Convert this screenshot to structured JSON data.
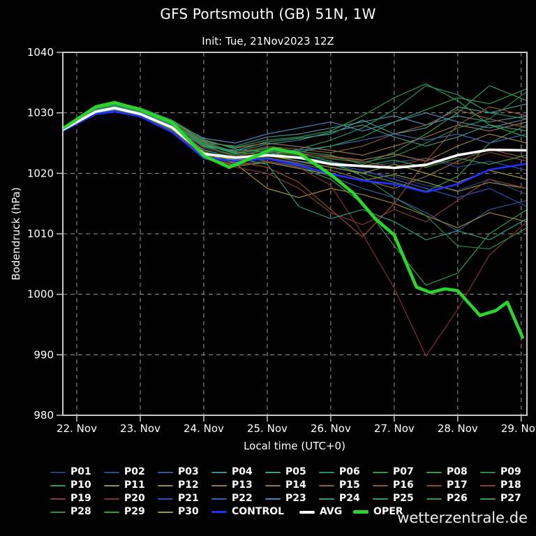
{
  "page": {
    "background": "#000000",
    "watermark": "wetterzentrale.de"
  },
  "colors": {
    "axis": "#c8c8c8",
    "grid": "#9a9a9a",
    "text": "#ffffff",
    "control": "#1f2fff",
    "avg": "#ffffff",
    "oper": "#2bd52b"
  },
  "chart_data": {
    "type": "line",
    "title": "GFS Portsmouth (GB) 51N, 1W",
    "subtitle": "Init: Tue, 21Nov2023 12Z",
    "xlabel": "Local time (UTC+0)",
    "ylabel": "Bodendruck (hPa)",
    "x_unit": "days since 22 Nov 00:00 local",
    "xlim": [
      -0.22,
      7.09
    ],
    "ylim": [
      980,
      1040
    ],
    "grid": "dashed",
    "legend_position": "bottom",
    "x_ticks": [
      {
        "d": 0,
        "label": "22. Nov"
      },
      {
        "d": 1,
        "label": "23. Nov"
      },
      {
        "d": 2,
        "label": "24. Nov"
      },
      {
        "d": 3,
        "label": "25. Nov"
      },
      {
        "d": 4,
        "label": "26. Nov"
      },
      {
        "d": 5,
        "label": "27. Nov"
      },
      {
        "d": 6,
        "label": "28. Nov"
      },
      {
        "d": 7,
        "label": "29. Nov"
      }
    ],
    "y_ticks": [
      980,
      990,
      1000,
      1010,
      1020,
      1030,
      1040
    ],
    "x": [
      -0.22,
      0.3,
      0.6,
      1.0,
      1.5,
      2.0,
      2.5,
      3.0,
      3.5,
      4.0,
      4.5,
      5.0,
      5.5,
      6.0,
      6.5,
      7.09
    ],
    "series": [
      {
        "name": "P01",
        "color": "#26417f",
        "lw": 1.2,
        "y": [
          1027.2,
          1030.0,
          1030.6,
          1029.6,
          1027.2,
          1023.0,
          1021.8,
          1022.5,
          1021.8,
          1021.0,
          1020.2,
          1019.5,
          1018.0,
          1017.2,
          1019.0,
          1016.5
        ]
      },
      {
        "name": "P02",
        "color": "#2a4a9a",
        "lw": 1.2,
        "y": [
          1027.0,
          1029.8,
          1030.4,
          1029.8,
          1027.6,
          1023.6,
          1022.2,
          1023.2,
          1022.6,
          1022.0,
          1021.0,
          1021.8,
          1022.5,
          1021.0,
          1022.0,
          1020.5
        ]
      },
      {
        "name": "P03",
        "color": "#35569a",
        "lw": 1.2,
        "y": [
          1027.4,
          1030.2,
          1030.8,
          1029.4,
          1026.8,
          1022.4,
          1021.4,
          1022.0,
          1021.2,
          1019.5,
          1017.5,
          1016.0,
          1013.5,
          1010.5,
          1014.0,
          1015.5
        ]
      },
      {
        "name": "P04",
        "color": "#4a8a9a",
        "lw": 1.2,
        "y": [
          1027.6,
          1030.4,
          1031.0,
          1030.0,
          1028.2,
          1025.0,
          1024.5,
          1026.0,
          1026.5,
          1027.5,
          1028.5,
          1029.5,
          1028.0,
          1029.5,
          1028.5,
          1029.5
        ]
      },
      {
        "name": "P05",
        "color": "#4a9a94",
        "lw": 1.2,
        "y": [
          1027.3,
          1030.1,
          1030.7,
          1029.7,
          1027.4,
          1024.4,
          1023.8,
          1025.2,
          1025.8,
          1026.5,
          1028.8,
          1026.5,
          1027.5,
          1031.0,
          1030.0,
          1031.5
        ]
      },
      {
        "name": "P06",
        "color": "#2f8f6a",
        "lw": 1.2,
        "y": [
          1027.5,
          1030.6,
          1031.4,
          1030.6,
          1028.6,
          1025.2,
          1023.5,
          1023.0,
          1024.0,
          1025.5,
          1027.5,
          1030.5,
          1034.5,
          1033.0,
          1030.0,
          1029.0
        ]
      },
      {
        "name": "P07",
        "color": "#2f9a4f",
        "lw": 1.2,
        "y": [
          1027.2,
          1030.4,
          1031.0,
          1030.2,
          1028.0,
          1024.6,
          1022.8,
          1022.0,
          1021.0,
          1019.0,
          1015.0,
          1008.0,
          1001.5,
          1003.5,
          1010.0,
          1014.0
        ]
      },
      {
        "name": "P08",
        "color": "#3a9a55",
        "lw": 1.2,
        "y": [
          1027.6,
          1031.0,
          1031.8,
          1030.8,
          1028.8,
          1025.6,
          1024.0,
          1023.5,
          1022.5,
          1021.5,
          1020.0,
          1018.5,
          1017.0,
          1019.5,
          1025.0,
          1028.0
        ]
      },
      {
        "name": "P09",
        "color": "#2f8a46",
        "lw": 1.2,
        "y": [
          1027.3,
          1030.2,
          1030.9,
          1029.9,
          1027.7,
          1023.8,
          1022.6,
          1023.4,
          1023.0,
          1022.4,
          1021.8,
          1022.8,
          1025.0,
          1027.5,
          1029.0,
          1033.5
        ]
      },
      {
        "name": "P10",
        "color": "#339a5c",
        "lw": 1.2,
        "y": [
          1027.4,
          1030.5,
          1031.2,
          1030.4,
          1028.2,
          1024.8,
          1023.2,
          1024.2,
          1023.6,
          1023.0,
          1021.5,
          1023.5,
          1026.5,
          1030.0,
          1034.5,
          1032.0
        ]
      },
      {
        "name": "P11",
        "color": "#8a9a3a",
        "lw": 1.2,
        "y": [
          1027.1,
          1029.9,
          1030.5,
          1029.5,
          1027.0,
          1022.8,
          1021.2,
          1021.8,
          1020.8,
          1019.8,
          1018.8,
          1019.8,
          1018.5,
          1017.0,
          1018.5,
          1017.5
        ]
      },
      {
        "name": "P12",
        "color": "#9a8a33",
        "lw": 1.2,
        "y": [
          1027.5,
          1030.3,
          1031.1,
          1030.1,
          1027.8,
          1023.4,
          1021.6,
          1017.5,
          1016.0,
          1017.5,
          1016.5,
          1015.0,
          1013.0,
          1011.0,
          1013.5,
          1012.0
        ]
      },
      {
        "name": "P13",
        "color": "#9a7a42",
        "lw": 1.2,
        "y": [
          1027.2,
          1030.0,
          1030.7,
          1029.8,
          1027.5,
          1023.2,
          1022.4,
          1023.6,
          1023.2,
          1022.8,
          1022.2,
          1023.2,
          1022.0,
          1024.5,
          1026.5,
          1025.0
        ]
      },
      {
        "name": "P14",
        "color": "#96764a",
        "lw": 1.2,
        "y": [
          1027.6,
          1030.6,
          1031.3,
          1030.3,
          1028.4,
          1025.4,
          1024.2,
          1025.0,
          1024.4,
          1023.8,
          1023.0,
          1024.5,
          1026.0,
          1028.0,
          1027.0,
          1028.5
        ]
      },
      {
        "name": "P15",
        "color": "#8a683f",
        "lw": 1.2,
        "y": [
          1027.3,
          1030.1,
          1030.8,
          1029.6,
          1027.2,
          1023.0,
          1021.8,
          1022.6,
          1021.6,
          1020.5,
          1019.0,
          1017.5,
          1019.5,
          1022.0,
          1024.0,
          1022.5
        ]
      },
      {
        "name": "P16",
        "color": "#8a5a3a",
        "lw": 1.2,
        "y": [
          1027.5,
          1030.7,
          1031.5,
          1030.5,
          1028.6,
          1025.0,
          1023.4,
          1024.4,
          1024.0,
          1023.4,
          1024.5,
          1026.5,
          1028.0,
          1030.5,
          1029.0,
          1027.5
        ]
      },
      {
        "name": "P17",
        "color": "#964a33",
        "lw": 1.2,
        "y": [
          1027.2,
          1030.2,
          1030.9,
          1030.0,
          1027.9,
          1023.6,
          1022.0,
          1021.0,
          1018.5,
          1014.0,
          1009.5,
          1015.0,
          1022.0,
          1028.0,
          1031.0,
          1029.5
        ]
      },
      {
        "name": "P18",
        "color": "#8a3f2f",
        "lw": 1.2,
        "y": [
          1027.4,
          1030.4,
          1031.1,
          1030.2,
          1028.1,
          1024.2,
          1022.8,
          1023.8,
          1023.4,
          1022.6,
          1022.0,
          1021.0,
          1022.5,
          1021.5,
          1023.5,
          1022.0
        ]
      },
      {
        "name": "P19",
        "color": "#8a3a3a",
        "lw": 1.2,
        "y": [
          1027.1,
          1029.7,
          1030.3,
          1029.3,
          1026.9,
          1022.6,
          1021.0,
          1020.0,
          1017.5,
          1013.5,
          1011.5,
          1014.0,
          1012.0,
          1015.5,
          1019.0,
          1017.5
        ]
      },
      {
        "name": "P20",
        "color": "#852f33",
        "lw": 1.2,
        "y": [
          1027.3,
          1030.0,
          1030.6,
          1029.5,
          1027.1,
          1022.9,
          1021.5,
          1022.0,
          1021.0,
          1018.0,
          1010.0,
          1001.0,
          989.8,
          997.5,
          1006.5,
          1012.0
        ]
      },
      {
        "name": "P21",
        "color": "#2f4fba",
        "lw": 1.2,
        "y": [
          1027.5,
          1030.5,
          1031.0,
          1030.0,
          1027.8,
          1023.4,
          1022.6,
          1023.0,
          1022.0,
          1021.5,
          1020.5,
          1019.0,
          1017.5,
          1016.0,
          1017.5,
          1014.5
        ]
      },
      {
        "name": "P22",
        "color": "#3a66b0",
        "lw": 1.2,
        "y": [
          1027.2,
          1029.9,
          1030.5,
          1029.7,
          1027.3,
          1023.1,
          1022.3,
          1023.5,
          1023.8,
          1024.5,
          1025.5,
          1026.5,
          1025.5,
          1026.5,
          1025.0,
          1026.5
        ]
      },
      {
        "name": "P23",
        "color": "#4f86bf",
        "lw": 1.2,
        "y": [
          1027.6,
          1030.8,
          1031.2,
          1030.4,
          1028.5,
          1025.8,
          1025.0,
          1026.5,
          1027.5,
          1028.5,
          1027.0,
          1028.5,
          1030.0,
          1028.5,
          1027.5,
          1029.0
        ]
      },
      {
        "name": "P24",
        "color": "#3a968a",
        "lw": 1.2,
        "y": [
          1027.4,
          1030.3,
          1031.0,
          1030.1,
          1028.0,
          1024.6,
          1023.6,
          1024.8,
          1025.5,
          1026.8,
          1028.0,
          1026.0,
          1024.5,
          1026.0,
          1028.0,
          1027.0
        ]
      },
      {
        "name": "P25",
        "color": "#2f9a82",
        "lw": 1.2,
        "y": [
          1027.3,
          1030.2,
          1030.8,
          1029.9,
          1027.6,
          1023.9,
          1022.5,
          1021.5,
          1014.5,
          1012.5,
          1014.0,
          1012.0,
          1009.0,
          1010.5,
          1009.0,
          1012.5
        ]
      },
      {
        "name": "P26",
        "color": "#309a52",
        "lw": 1.2,
        "y": [
          1027.5,
          1030.6,
          1031.3,
          1030.5,
          1028.3,
          1024.9,
          1023.3,
          1024.0,
          1023.5,
          1024.5,
          1026.0,
          1028.5,
          1030.5,
          1032.5,
          1031.5,
          1034.0
        ]
      },
      {
        "name": "P27",
        "color": "#38a04a",
        "lw": 1.2,
        "y": [
          1027.2,
          1030.0,
          1030.6,
          1029.6,
          1027.2,
          1023.3,
          1022.0,
          1022.8,
          1022.4,
          1021.8,
          1021.2,
          1022.2,
          1021.0,
          1022.5,
          1021.5,
          1023.0
        ]
      },
      {
        "name": "P28",
        "color": "#2c8a4c",
        "lw": 1.2,
        "y": [
          1027.4,
          1030.4,
          1031.1,
          1030.3,
          1028.1,
          1024.4,
          1023.0,
          1023.8,
          1023.2,
          1022.0,
          1019.5,
          1016.0,
          1013.0,
          1008.0,
          1007.5,
          1011.0
        ]
      },
      {
        "name": "P29",
        "color": "#29a046",
        "lw": 1.2,
        "y": [
          1027.6,
          1030.7,
          1031.4,
          1030.6,
          1028.7,
          1025.3,
          1024.3,
          1025.5,
          1026.0,
          1027.0,
          1029.5,
          1032.5,
          1034.8,
          1032.0,
          1028.0,
          1026.0
        ]
      },
      {
        "name": "P30",
        "color": "#9a9a3a",
        "lw": 1.2,
        "y": [
          1027.3,
          1030.1,
          1030.7,
          1029.7,
          1027.4,
          1023.5,
          1022.1,
          1022.9,
          1022.0,
          1021.0,
          1020.0,
          1021.5,
          1020.0,
          1018.5,
          1020.5,
          1019.0
        ]
      },
      {
        "name": "CONTROL",
        "color": "#1f2fff",
        "lw": 2.6,
        "y": [
          1027.0,
          1029.8,
          1030.2,
          1029.4,
          1026.8,
          1022.6,
          1022.0,
          1022.4,
          1021.4,
          1019.9,
          1018.8,
          1018.2,
          1016.9,
          1018.2,
          1020.6,
          1021.6
        ]
      },
      {
        "name": "AVG",
        "color": "#ffffff",
        "lw": 3.6,
        "y": [
          1027.2,
          1030.2,
          1030.8,
          1029.8,
          1027.6,
          1023.2,
          1022.6,
          1023.0,
          1022.6,
          1021.5,
          1021.2,
          1020.9,
          1021.4,
          1023.0,
          1023.9,
          1023.8
        ]
      },
      {
        "name": "OPER",
        "color": "#2bd52b",
        "lw": 4.6,
        "x": [
          -0.22,
          0.3,
          0.6,
          1.0,
          1.5,
          2.0,
          2.4,
          2.7,
          3.1,
          3.5,
          4.0,
          4.35,
          4.7,
          5.0,
          5.35,
          5.57,
          5.8,
          6.0,
          6.35,
          6.6,
          6.78,
          7.02
        ],
        "y": [
          1027.4,
          1031.0,
          1031.7,
          1030.5,
          1028.4,
          1022.9,
          1021.0,
          1022.3,
          1024.1,
          1023.3,
          1019.8,
          1016.8,
          1012.5,
          1009.8,
          1001.2,
          1000.3,
          1000.9,
          1000.6,
          996.5,
          997.3,
          998.7,
          992.9
        ]
      }
    ]
  }
}
